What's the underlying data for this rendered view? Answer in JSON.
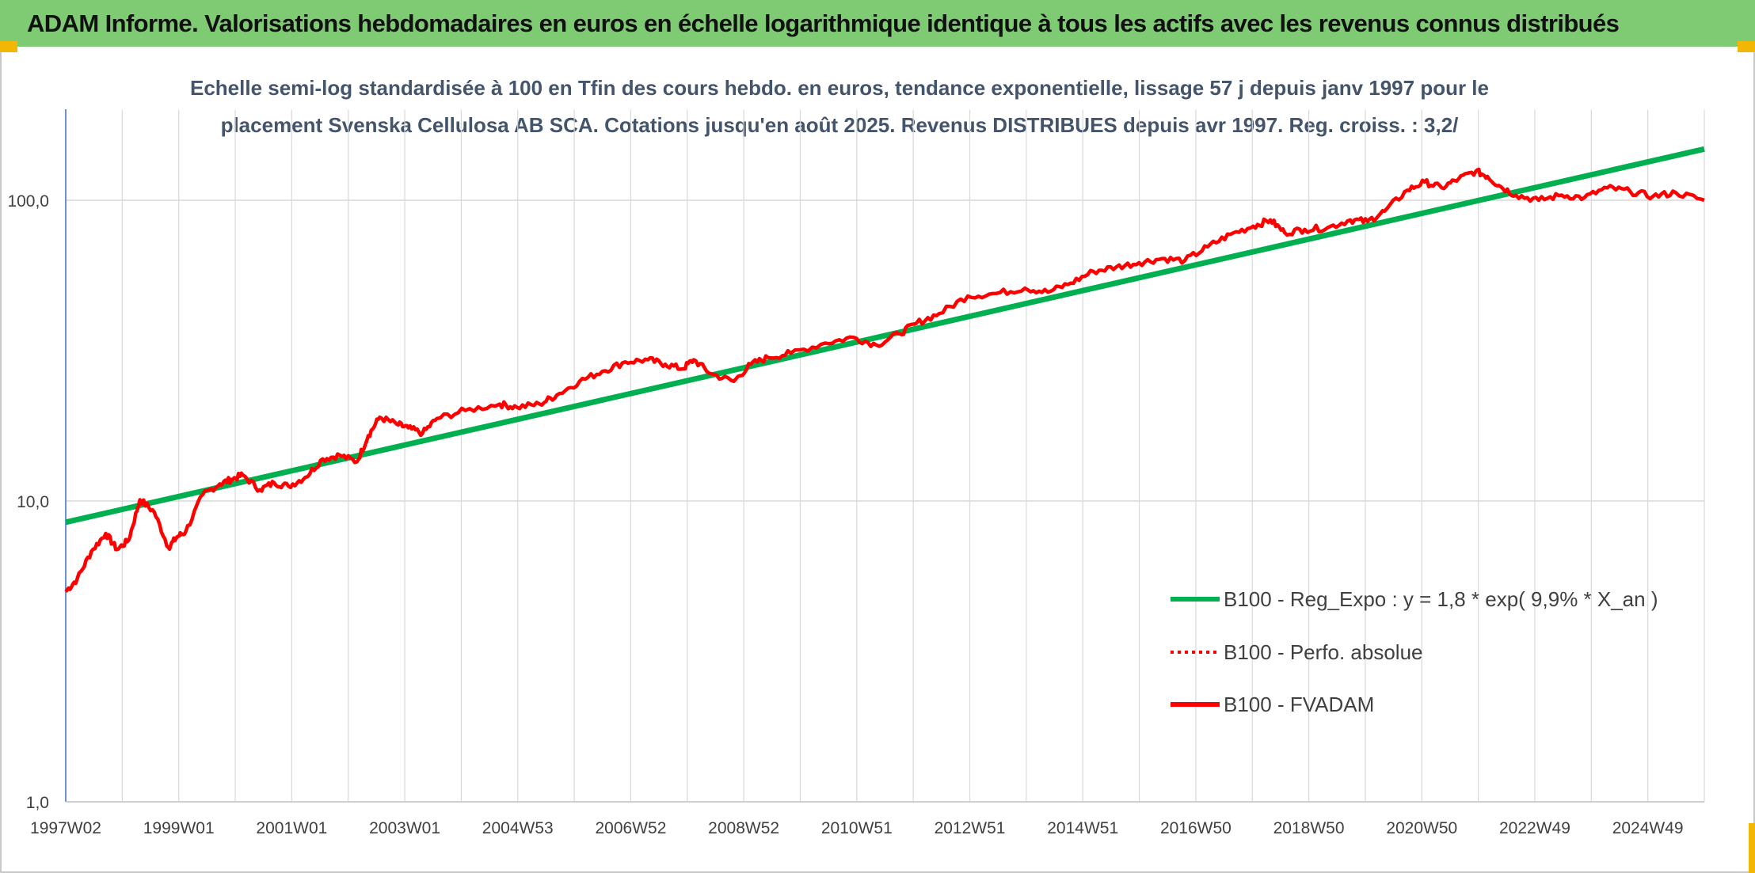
{
  "header": {
    "title": "ADAM Informe. Valorisations hebdomadaires en euros en échelle logarithmique identique à tous les actifs avec les revenus connus distribués"
  },
  "chart_data": {
    "type": "line",
    "title_line_1": "Echelle semi-log standardisée à 100 en Tfin des cours hebdo. en euros, tendance exponentielle, lissage 57 j depuis janv 1997 pour le",
    "title_line_2": "placement Svenska Cellulosa AB SCA. Cotations jusqu'en août 2025. Revenus DISTRIBUES depuis avr 1997. Reg. croiss. : 3,2/",
    "y_scale": "log",
    "ylim": [
      1,
      200
    ],
    "xlim": [
      1997.0,
      2025.7
    ],
    "grid": true,
    "legend_position": "bottom-right",
    "x_tick_labels": [
      "1997W02",
      "1999W01",
      "2001W01",
      "2003W01",
      "2004W53",
      "2006W52",
      "2008W52",
      "2010W51",
      "2012W51",
      "2014W51",
      "2016W50",
      "2018W50",
      "2020W50",
      "2022W49",
      "2024W49"
    ],
    "y_tick_labels": [
      "1,0",
      "10,0",
      "100,0"
    ],
    "colors": {
      "trend": "#00b050",
      "perf": "#ff0000",
      "fvadam": "#ff0000",
      "grid": "#d9d9d9",
      "axis": "#4472c4"
    },
    "series": [
      {
        "name": "B100 - Reg_Expo : y = 1,8 * exp( 9,9% *  X_an )",
        "style": "solid-thick",
        "x": [
          1997.0,
          2025.7
        ],
        "values": [
          8.5,
          148
        ]
      },
      {
        "name": "B100 - Perfo. absolue",
        "style": "dotted",
        "x": [],
        "values": []
      },
      {
        "name": "B100 - FVADAM",
        "style": "solid",
        "x": [
          1997.0,
          1997.2,
          1997.45,
          1997.7,
          1997.9,
          1998.1,
          1998.3,
          1998.55,
          1998.8,
          1998.95,
          1999.1,
          1999.4,
          1999.7,
          1999.9,
          2000.1,
          2000.4,
          2000.65,
          2000.9,
          2001.2,
          2001.5,
          2001.8,
          2002.1,
          2002.3,
          2002.5,
          2002.8,
          2003.0,
          2003.25,
          2003.5,
          2004.0,
          2004.6,
          2004.9,
          2005.3,
          2005.6,
          2006.0,
          2006.4,
          2006.8,
          2007.2,
          2007.5,
          2007.8,
          2008.0,
          2008.3,
          2008.7,
          2009.0,
          2009.3,
          2009.7,
          2010.3,
          2010.8,
          2011.2,
          2011.6,
          2011.9,
          2012.3,
          2012.8,
          2013.3,
          2013.8,
          2014.2,
          2014.6,
          2015.0,
          2015.4,
          2015.8,
          2016.2,
          2016.6,
          2017.0,
          2017.4,
          2017.8,
          2018.1,
          2018.35,
          2018.7,
          2019.1,
          2019.5,
          2019.8,
          2020.1,
          2020.5,
          2020.8,
          2021.1,
          2021.4,
          2021.7,
          2021.9,
          2022.1,
          2022.4,
          2022.8,
          2023.2,
          2023.6,
          2024.0,
          2024.4,
          2024.8,
          2025.2,
          2025.7
        ],
        "values": [
          5.0,
          5.5,
          6.8,
          7.8,
          6.9,
          7.4,
          10.1,
          9.2,
          7.0,
          7.6,
          7.9,
          10.5,
          11.4,
          11.8,
          12.2,
          10.9,
          11.5,
          11.2,
          12.0,
          13.8,
          14.2,
          13.5,
          16.5,
          19.0,
          18.0,
          17.5,
          16.8,
          18.8,
          20.0,
          21.0,
          20.5,
          21.0,
          22.5,
          25.0,
          27.0,
          29.0,
          29.5,
          28.5,
          27.5,
          29.5,
          26.5,
          25.0,
          28.5,
          30.0,
          31.0,
          33.5,
          35.0,
          33.0,
          36.0,
          39.0,
          42.0,
          48.0,
          49.0,
          51.0,
          49.5,
          53.0,
          58.0,
          60.0,
          62.0,
          64.0,
          63.0,
          70.0,
          77.0,
          82.0,
          86.0,
          78.0,
          80.0,
          81.0,
          86.0,
          85.0,
          92.0,
          108.0,
          115.0,
          110.0,
          118.0,
          125.0,
          120.0,
          112.0,
          104.0,
          100.0,
          104.0,
          102.0,
          110.0,
          107.0,
          103.0,
          106.0,
          100.0
        ]
      }
    ]
  }
}
